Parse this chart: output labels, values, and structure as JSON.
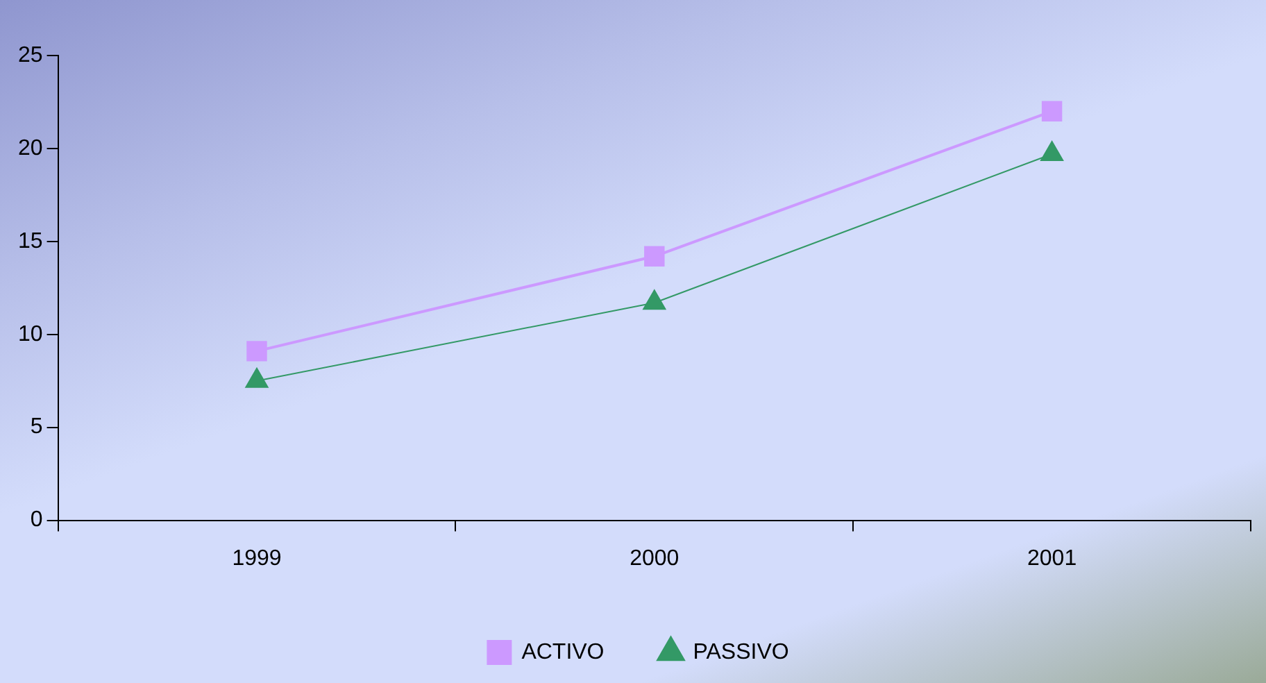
{
  "chart_data": {
    "type": "line",
    "categories": [
      "1999",
      "2000",
      "2001"
    ],
    "series": [
      {
        "name": "ACTIVO",
        "color": "#cc99ff",
        "values": [
          9.1,
          14.2,
          22.0
        ],
        "marker": "square"
      },
      {
        "name": "PASSIVO",
        "color": "#339966",
        "values": [
          7.5,
          11.7,
          19.7
        ],
        "marker": "triangle"
      }
    ],
    "ylim": [
      0,
      25
    ],
    "yticks": [
      0,
      5,
      10,
      15,
      20,
      25
    ],
    "grid": false,
    "legend": "bottom",
    "line_style": "solid"
  }
}
